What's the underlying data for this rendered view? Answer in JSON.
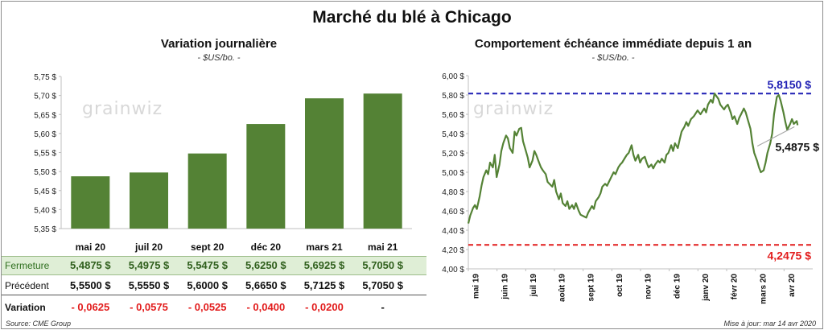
{
  "title": "Marché du blé à Chicago",
  "watermark": "grainwiz",
  "colors": {
    "bar": "#548235",
    "line": "#548235",
    "high_line": "#1f1fb4",
    "low_line": "#e21c1c",
    "negative": "#e21c1c"
  },
  "table": {
    "rows": [
      {
        "label": "Fermeture",
        "cells": [
          "5,4875  $",
          "5,4975  $",
          "5,5475  $",
          "5,6250  $",
          "5,6925  $",
          "5,7050  $"
        ]
      },
      {
        "label": "Précédent",
        "cells": [
          "5,5500  $",
          "5,5550  $",
          "5,6000  $",
          "5,6650  $",
          "5,7125  $",
          "5,7050  $"
        ]
      },
      {
        "label": "Variation",
        "cells": [
          "- 0,0625",
          "- 0,0575",
          "- 0,0525",
          "- 0,0400",
          "- 0,0200",
          "-"
        ]
      }
    ]
  },
  "footer": {
    "source": "Source: CME Group",
    "updated": "Mise à jour: mar 14 avr 2020"
  },
  "chart_data": [
    {
      "type": "bar",
      "title": "Variation  journalière",
      "subtitle": "- $US/bo. -",
      "categories": [
        "mai 20",
        "juil 20",
        "sept 20",
        "déc 20",
        "mars 21",
        "mai 21"
      ],
      "values": [
        5.4875,
        5.4975,
        5.5475,
        5.625,
        5.6925,
        5.705
      ],
      "ylim": [
        5.35,
        5.75
      ],
      "yticks": [
        5.35,
        5.4,
        5.45,
        5.5,
        5.55,
        5.6,
        5.65,
        5.7,
        5.75
      ],
      "ytick_labels": [
        "5,35 $",
        "5,40 $",
        "5,45 $",
        "5,50 $",
        "5,55 $",
        "5,60 $",
        "5,65 $",
        "5,70 $",
        "5,75 $"
      ],
      "grid": false
    },
    {
      "type": "line",
      "title": "Comportement  échéance immédiate depuis 1 an",
      "subtitle": "- $US/bo. -",
      "ylim": [
        4.0,
        6.0
      ],
      "yticks": [
        4.0,
        4.2,
        4.4,
        4.6,
        4.8,
        5.0,
        5.2,
        5.4,
        5.6,
        5.8,
        6.0
      ],
      "ytick_labels": [
        "4,00 $",
        "4,20 $",
        "4,40 $",
        "4,60 $",
        "4,80 $",
        "5,00 $",
        "5,20 $",
        "5,40 $",
        "5,60 $",
        "5,80 $",
        "6,00 $"
      ],
      "xticks": [
        "mai 19",
        "juin 19",
        "juil 19",
        "août 19",
        "sept 19",
        "oct 19",
        "nov 19",
        "déc 19",
        "janv 20",
        "févr 20",
        "mars 20",
        "avr 20"
      ],
      "x_range": [
        "2019-05-01",
        "2020-04-30"
      ],
      "series": [
        {
          "values": [
            [
              "2019-05-01",
              4.47
            ],
            [
              "2019-05-03",
              4.55
            ],
            [
              "2019-05-06",
              4.63
            ],
            [
              "2019-05-08",
              4.66
            ],
            [
              "2019-05-10",
              4.62
            ],
            [
              "2019-05-13",
              4.75
            ],
            [
              "2019-05-15",
              4.86
            ],
            [
              "2019-05-17",
              4.95
            ],
            [
              "2019-05-20",
              5.02
            ],
            [
              "2019-05-22",
              4.98
            ],
            [
              "2019-05-24",
              5.1
            ],
            [
              "2019-05-27",
              5.05
            ],
            [
              "2019-05-29",
              5.18
            ],
            [
              "2019-05-31",
              4.95
            ],
            [
              "2019-06-03",
              5.08
            ],
            [
              "2019-06-05",
              5.22
            ],
            [
              "2019-06-07",
              5.3
            ],
            [
              "2019-06-10",
              5.38
            ],
            [
              "2019-06-12",
              5.35
            ],
            [
              "2019-06-14",
              5.25
            ],
            [
              "2019-06-17",
              5.2
            ],
            [
              "2019-06-19",
              5.42
            ],
            [
              "2019-06-21",
              5.38
            ],
            [
              "2019-06-24",
              5.45
            ],
            [
              "2019-06-26",
              5.46
            ],
            [
              "2019-06-28",
              5.32
            ],
            [
              "2019-07-01",
              5.22
            ],
            [
              "2019-07-03",
              5.15
            ],
            [
              "2019-07-05",
              5.05
            ],
            [
              "2019-07-08",
              5.12
            ],
            [
              "2019-07-10",
              5.22
            ],
            [
              "2019-07-12",
              5.18
            ],
            [
              "2019-07-15",
              5.1
            ],
            [
              "2019-07-17",
              5.05
            ],
            [
              "2019-07-19",
              5.02
            ],
            [
              "2019-07-22",
              4.98
            ],
            [
              "2019-07-24",
              4.9
            ],
            [
              "2019-07-26",
              4.88
            ],
            [
              "2019-07-29",
              4.85
            ],
            [
              "2019-07-31",
              4.92
            ],
            [
              "2019-08-02",
              4.8
            ],
            [
              "2019-08-05",
              4.72
            ],
            [
              "2019-08-07",
              4.78
            ],
            [
              "2019-08-09",
              4.68
            ],
            [
              "2019-08-12",
              4.65
            ],
            [
              "2019-08-14",
              4.7
            ],
            [
              "2019-08-16",
              4.62
            ],
            [
              "2019-08-19",
              4.66
            ],
            [
              "2019-08-21",
              4.62
            ],
            [
              "2019-08-23",
              4.68
            ],
            [
              "2019-08-26",
              4.6
            ],
            [
              "2019-08-28",
              4.56
            ],
            [
              "2019-08-30",
              4.55
            ],
            [
              "2019-09-03",
              4.53
            ],
            [
              "2019-09-05",
              4.58
            ],
            [
              "2019-09-09",
              4.65
            ],
            [
              "2019-09-11",
              4.62
            ],
            [
              "2019-09-13",
              4.7
            ],
            [
              "2019-09-16",
              4.74
            ],
            [
              "2019-09-18",
              4.78
            ],
            [
              "2019-09-20",
              4.85
            ],
            [
              "2019-09-23",
              4.88
            ],
            [
              "2019-09-25",
              4.86
            ],
            [
              "2019-09-27",
              4.9
            ],
            [
              "2019-09-30",
              4.96
            ],
            [
              "2019-10-02",
              5.0
            ],
            [
              "2019-10-04",
              4.98
            ],
            [
              "2019-10-07",
              5.05
            ],
            [
              "2019-10-09",
              5.08
            ],
            [
              "2019-10-11",
              5.1
            ],
            [
              "2019-10-14",
              5.15
            ],
            [
              "2019-10-16",
              5.18
            ],
            [
              "2019-10-18",
              5.2
            ],
            [
              "2019-10-21",
              5.28
            ],
            [
              "2019-10-23",
              5.18
            ],
            [
              "2019-10-25",
              5.12
            ],
            [
              "2019-10-28",
              5.18
            ],
            [
              "2019-10-30",
              5.1
            ],
            [
              "2019-11-01",
              5.14
            ],
            [
              "2019-11-04",
              5.16
            ],
            [
              "2019-11-06",
              5.1
            ],
            [
              "2019-11-08",
              5.05
            ],
            [
              "2019-11-11",
              5.08
            ],
            [
              "2019-11-13",
              5.04
            ],
            [
              "2019-11-15",
              5.08
            ],
            [
              "2019-11-18",
              5.12
            ],
            [
              "2019-11-20",
              5.1
            ],
            [
              "2019-11-22",
              5.14
            ],
            [
              "2019-11-25",
              5.1
            ],
            [
              "2019-11-27",
              5.18
            ],
            [
              "2019-11-29",
              5.2
            ],
            [
              "2019-12-02",
              5.28
            ],
            [
              "2019-12-04",
              5.22
            ],
            [
              "2019-12-06",
              5.3
            ],
            [
              "2019-12-09",
              5.25
            ],
            [
              "2019-12-11",
              5.34
            ],
            [
              "2019-12-13",
              5.42
            ],
            [
              "2019-12-16",
              5.47
            ],
            [
              "2019-12-18",
              5.52
            ],
            [
              "2019-12-20",
              5.48
            ],
            [
              "2019-12-23",
              5.55
            ],
            [
              "2019-12-26",
              5.58
            ],
            [
              "2019-12-30",
              5.64
            ],
            [
              "2020-01-02",
              5.6
            ],
            [
              "2020-01-06",
              5.66
            ],
            [
              "2020-01-08",
              5.62
            ],
            [
              "2020-01-10",
              5.7
            ],
            [
              "2020-01-13",
              5.75
            ],
            [
              "2020-01-15",
              5.72
            ],
            [
              "2020-01-17",
              5.815
            ],
            [
              "2020-01-21",
              5.76
            ],
            [
              "2020-01-23",
              5.7
            ],
            [
              "2020-01-27",
              5.65
            ],
            [
              "2020-01-29",
              5.68
            ],
            [
              "2020-01-31",
              5.7
            ],
            [
              "2020-02-03",
              5.62
            ],
            [
              "2020-02-05",
              5.55
            ],
            [
              "2020-02-07",
              5.58
            ],
            [
              "2020-02-10",
              5.5
            ],
            [
              "2020-02-12",
              5.56
            ],
            [
              "2020-02-14",
              5.6
            ],
            [
              "2020-02-17",
              5.66
            ],
            [
              "2020-02-19",
              5.62
            ],
            [
              "2020-02-21",
              5.55
            ],
            [
              "2020-02-24",
              5.45
            ],
            [
              "2020-02-26",
              5.3
            ],
            [
              "2020-02-28",
              5.2
            ],
            [
              "2020-03-02",
              5.12
            ],
            [
              "2020-03-04",
              5.05
            ],
            [
              "2020-03-06",
              5.0
            ],
            [
              "2020-03-09",
              5.02
            ],
            [
              "2020-03-11",
              5.1
            ],
            [
              "2020-03-13",
              5.2
            ],
            [
              "2020-03-16",
              5.3
            ],
            [
              "2020-03-18",
              5.4
            ],
            [
              "2020-03-20",
              5.6
            ],
            [
              "2020-03-23",
              5.78
            ],
            [
              "2020-03-25",
              5.8
            ],
            [
              "2020-03-27",
              5.74
            ],
            [
              "2020-03-30",
              5.62
            ],
            [
              "2020-04-01",
              5.52
            ],
            [
              "2020-04-03",
              5.44
            ],
            [
              "2020-04-06",
              5.5
            ],
            [
              "2020-04-08",
              5.55
            ],
            [
              "2020-04-10",
              5.5
            ],
            [
              "2020-04-13",
              5.53
            ],
            [
              "2020-04-14",
              5.4875
            ]
          ]
        }
      ],
      "reference_lines": [
        {
          "y": 5.815,
          "label": "5,8150  $",
          "color": "#1f1fb4",
          "style": "dashed"
        },
        {
          "y": 4.2475,
          "label": "4,2475  $",
          "color": "#e21c1c",
          "style": "dashed"
        }
      ],
      "annotations": [
        {
          "label": "5,4875 $",
          "x": "2020-04-14",
          "y": 5.4875
        }
      ],
      "grid": false
    }
  ]
}
